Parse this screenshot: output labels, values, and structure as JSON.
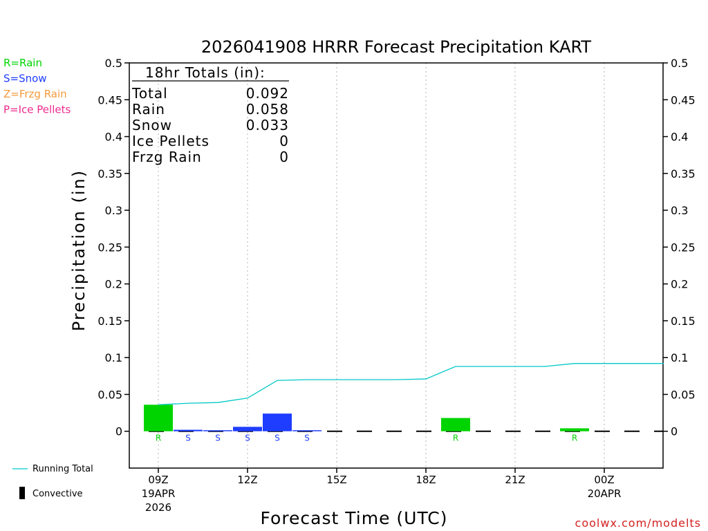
{
  "chart_data": {
    "type": "bar",
    "title": "2026041908 HRRR Forecast Precipitation KART",
    "xlabel": "Forecast Time (UTC)",
    "ylabel": "Precipitation (in)",
    "ylim": [
      -0.05,
      0.5
    ],
    "yticks": [
      "0",
      "0.05",
      "0.1",
      "0.15",
      "0.2",
      "0.25",
      "0.3",
      "0.35",
      "0.4",
      "0.45",
      "0.5"
    ],
    "ytick_values": [
      0,
      0.05,
      0.1,
      0.15,
      0.2,
      0.25,
      0.3,
      0.35,
      0.4,
      0.45,
      0.5
    ],
    "xticks": [
      {
        "hour": 9,
        "label": "09Z",
        "line2": "19APR",
        "line3": "2026"
      },
      {
        "hour": 12,
        "label": "12Z",
        "line2": "",
        "line3": ""
      },
      {
        "hour": 15,
        "label": "15Z",
        "line2": "",
        "line3": ""
      },
      {
        "hour": 18,
        "label": "18Z",
        "line2": "",
        "line3": ""
      },
      {
        "hour": 21,
        "label": "21Z",
        "line2": "",
        "line3": ""
      },
      {
        "hour": 24,
        "label": "00Z",
        "line2": "20APR",
        "line3": ""
      }
    ],
    "xlim": [
      8,
      26
    ],
    "grid": "vertical-dotted",
    "series": [
      {
        "name": "Rain",
        "color": "#00d400",
        "values": [
          {
            "hour": 9,
            "value": 0.036
          },
          {
            "hour": 19,
            "value": 0.018
          },
          {
            "hour": 23,
            "value": 0.004
          }
        ]
      },
      {
        "name": "Snow",
        "color": "#1f3dff",
        "values": [
          {
            "hour": 10,
            "value": 0.002
          },
          {
            "hour": 11,
            "value": 0.001
          },
          {
            "hour": 12,
            "value": 0.006
          },
          {
            "hour": 13,
            "value": 0.024
          },
          {
            "hour": 14,
            "value": 0.001
          }
        ]
      }
    ],
    "running_total": {
      "name": "Running Total",
      "color": "#00c8c8",
      "points": [
        {
          "hour": 9,
          "value": 0.036
        },
        {
          "hour": 10,
          "value": 0.038
        },
        {
          "hour": 11,
          "value": 0.039
        },
        {
          "hour": 12,
          "value": 0.045
        },
        {
          "hour": 13,
          "value": 0.069
        },
        {
          "hour": 14,
          "value": 0.07
        },
        {
          "hour": 15,
          "value": 0.07
        },
        {
          "hour": 16,
          "value": 0.07
        },
        {
          "hour": 17,
          "value": 0.07
        },
        {
          "hour": 18,
          "value": 0.071
        },
        {
          "hour": 19,
          "value": 0.088
        },
        {
          "hour": 20,
          "value": 0.088
        },
        {
          "hour": 21,
          "value": 0.088
        },
        {
          "hour": 22,
          "value": 0.088
        },
        {
          "hour": 23,
          "value": 0.092
        },
        {
          "hour": 24,
          "value": 0.092
        },
        {
          "hour": 25,
          "value": 0.092
        },
        {
          "hour": 26,
          "value": 0.092
        }
      ]
    },
    "type_markers": [
      {
        "hour": 9,
        "letter": "R",
        "color": "#00d400"
      },
      {
        "hour": 10,
        "letter": "S",
        "color": "#1f3dff"
      },
      {
        "hour": 11,
        "letter": "S",
        "color": "#1f3dff"
      },
      {
        "hour": 12,
        "letter": "S",
        "color": "#1f3dff"
      },
      {
        "hour": 13,
        "letter": "S",
        "color": "#1f3dff"
      },
      {
        "hour": 14,
        "letter": "S",
        "color": "#1f3dff"
      },
      {
        "hour": 19,
        "letter": "R",
        "color": "#00d400"
      },
      {
        "hour": 23,
        "letter": "R",
        "color": "#00d400"
      }
    ],
    "totals_box": {
      "header": "18hr Totals (in):",
      "rows": [
        {
          "label": "Total",
          "value": "0.092"
        },
        {
          "label": "Rain",
          "value": "0.058"
        },
        {
          "label": "Snow",
          "value": "0.033"
        },
        {
          "label": "Ice Pellets",
          "value": "0"
        },
        {
          "label": "Frzg Rain",
          "value": "0"
        }
      ]
    },
    "type_legend": [
      {
        "text": "R=Rain",
        "color": "#00d400"
      },
      {
        "text": "S=Snow",
        "color": "#1f3dff"
      },
      {
        "text": "Z=Frzg Rain",
        "color": "#f39a3c"
      },
      {
        "text": "P=Ice Pellets",
        "color": "#ee2a8c"
      }
    ],
    "line_legend": {
      "running_total": "Running Total",
      "convective": "Convective"
    },
    "credit": "coolwx.com/modelts"
  }
}
